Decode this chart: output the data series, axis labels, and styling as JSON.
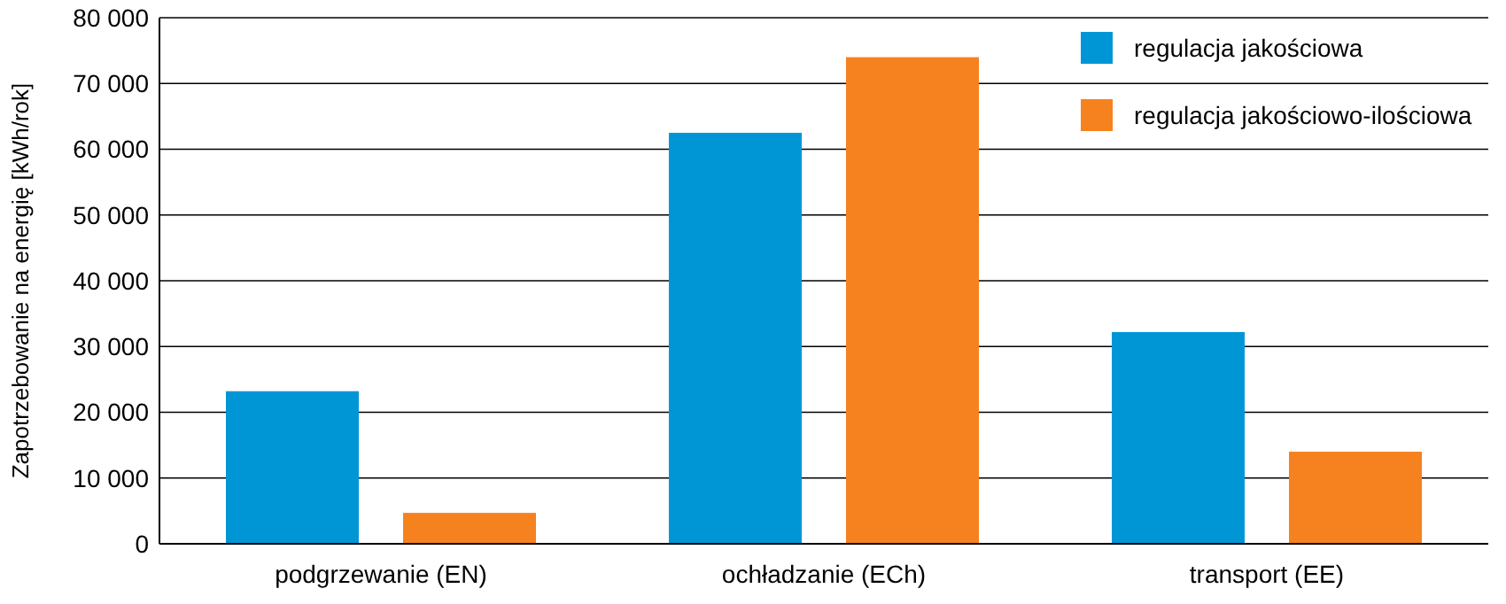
{
  "chart_data": {
    "type": "bar",
    "ylabel": "Zapotrzebowanie na energię [kWh/rok]",
    "categories": [
      "podgrzewanie (EN)",
      "ochładzanie (ECh)",
      "transport (EE)"
    ],
    "series": [
      {
        "name": "regulacja jakościowa",
        "color": "#0096d6",
        "values": [
          23200,
          62500,
          32200
        ]
      },
      {
        "name": "regulacja jakościowo-ilościowa",
        "color": "#f5821f",
        "values": [
          4700,
          74000,
          14000
        ]
      }
    ],
    "ylim": [
      0,
      80000
    ],
    "yticks": [
      {
        "value": 0,
        "label": "0"
      },
      {
        "value": 10000,
        "label": "10 000"
      },
      {
        "value": 20000,
        "label": "20 000"
      },
      {
        "value": 30000,
        "label": "30 000"
      },
      {
        "value": 40000,
        "label": "40 000"
      },
      {
        "value": 50000,
        "label": "50 000"
      },
      {
        "value": 60000,
        "label": "60 000"
      },
      {
        "value": 70000,
        "label": "70 000"
      },
      {
        "value": 80000,
        "label": "80 000"
      }
    ],
    "grid": "y",
    "legend": "top right"
  }
}
